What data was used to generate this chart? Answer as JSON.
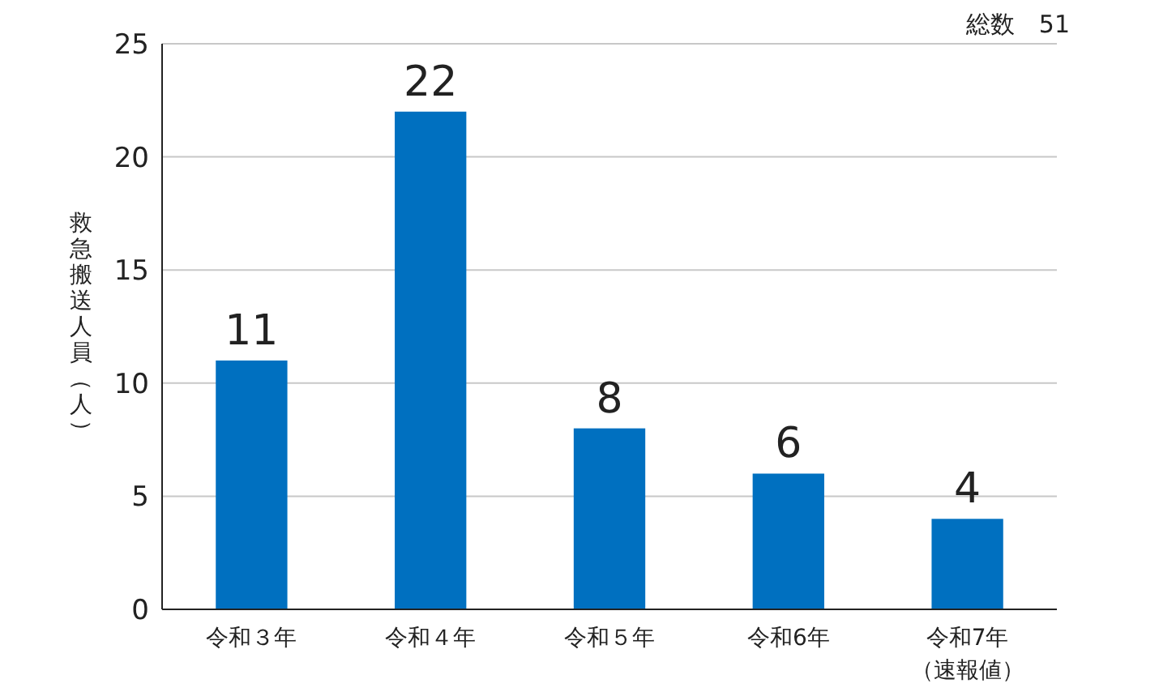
{
  "chart_data": {
    "type": "bar",
    "ylabel": "救急搬送人員（人）",
    "annotations": [
      "総数　51"
    ],
    "categories": [
      "令和３年",
      "令和４年",
      "令和５年",
      "令和6年",
      "令和7年（速報値）"
    ],
    "values": [
      11,
      22,
      8,
      6,
      4
    ],
    "color": "#0070c0",
    "ylim": [
      0,
      25
    ],
    "yticks": [
      0,
      5,
      10,
      15,
      20,
      25
    ],
    "grid": "y",
    "data_labels": true
  }
}
